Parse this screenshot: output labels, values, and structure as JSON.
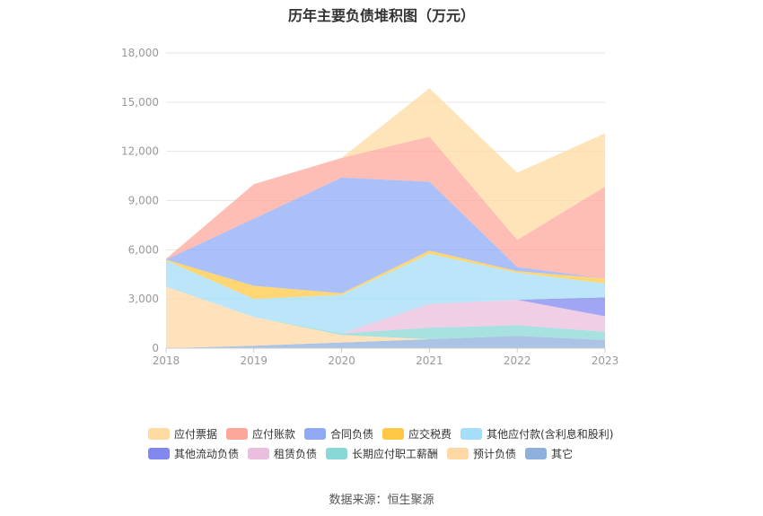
{
  "chart_data": {
    "type": "area",
    "stacked": true,
    "title": "历年主要负债堆积图（万元）",
    "x": [
      "2018",
      "2019",
      "2020",
      "2021",
      "2022",
      "2023"
    ],
    "ylim": [
      0,
      18000
    ],
    "yticks": [
      "0",
      "3,000",
      "6,000",
      "9,000",
      "12,000",
      "15,000",
      "18,000"
    ],
    "grid": true,
    "legend_position": "bottom",
    "series": [
      {
        "name": "其它",
        "color": "#8fb0dd",
        "values": [
          0,
          150,
          350,
          550,
          750,
          500
        ]
      },
      {
        "name": "预计负债",
        "color": "#ffd8a6",
        "values": [
          3750,
          1750,
          450,
          0,
          0,
          0
        ]
      },
      {
        "name": "长期应付职工薪酬",
        "color": "#8ad8d6",
        "values": [
          0,
          0,
          100,
          700,
          650,
          500
        ]
      },
      {
        "name": "租赁负债",
        "color": "#eabedd",
        "values": [
          0,
          0,
          0,
          1450,
          1550,
          950
        ]
      },
      {
        "name": "其他流动负债",
        "color": "#8088f0",
        "values": [
          0,
          0,
          0,
          0,
          0,
          1150
        ]
      },
      {
        "name": "其他应付款(含利息和股利)",
        "color": "#a4def8",
        "values": [
          1600,
          1100,
          2350,
          3050,
          1650,
          850
        ]
      },
      {
        "name": "应交税费",
        "color": "#ffc845",
        "values": [
          50,
          800,
          100,
          200,
          100,
          300
        ]
      },
      {
        "name": "合同负债",
        "color": "#8fa9f5",
        "values": [
          0,
          4100,
          7050,
          4200,
          250,
          0
        ]
      },
      {
        "name": "应付账款",
        "color": "#fda79c",
        "values": [
          50,
          2100,
          1200,
          2750,
          1650,
          5600
        ]
      },
      {
        "name": "应付票据",
        "color": "#ffdba1",
        "values": [
          0,
          0,
          0,
          2950,
          4100,
          3250
        ]
      }
    ]
  },
  "legend": {
    "row1": [
      {
        "label": "应付票据",
        "color": "#ffdba1"
      },
      {
        "label": "应付账款",
        "color": "#fda79c"
      },
      {
        "label": "合同负债",
        "color": "#8fa9f5"
      },
      {
        "label": "应交税费",
        "color": "#ffc845"
      },
      {
        "label": "其他应付款(含利息和股利)",
        "color": "#a4def8"
      }
    ],
    "row2": [
      {
        "label": "其他流动负债",
        "color": "#8088f0"
      },
      {
        "label": "租赁负债",
        "color": "#eabedd"
      },
      {
        "label": "长期应付职工薪酬",
        "color": "#8ad8d6"
      },
      {
        "label": "预计负债",
        "color": "#ffd8a6"
      },
      {
        "label": "其它",
        "color": "#8fb0dd"
      }
    ]
  },
  "source_text": "数据来源：恒生聚源"
}
